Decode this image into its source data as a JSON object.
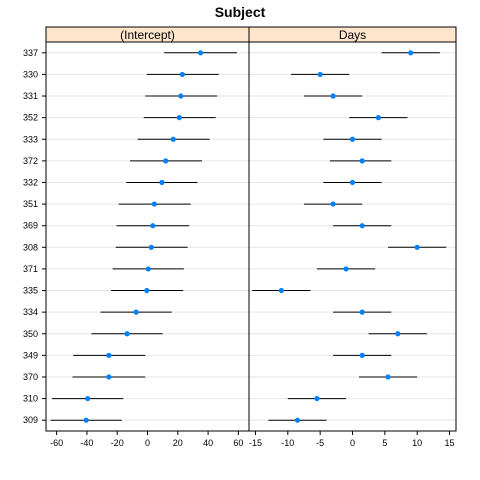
{
  "chart_data": {
    "type": "scatter",
    "title": "Subject",
    "subjects": [
      "337",
      "330",
      "331",
      "352",
      "333",
      "372",
      "332",
      "351",
      "369",
      "308",
      "371",
      "335",
      "334",
      "350",
      "349",
      "370",
      "310",
      "309"
    ],
    "panels": [
      {
        "name": "(Intercept)",
        "xlim": [
          -67,
          67
        ],
        "ticks": [
          -60,
          -40,
          -20,
          0,
          20,
          40,
          60
        ],
        "estimates": [
          35,
          23,
          22,
          21,
          17,
          12,
          9.5,
          4.5,
          3.5,
          2.5,
          0.5,
          -0.5,
          -7.5,
          -13.5,
          -25.5,
          -25.5,
          -39.5,
          -40.5
        ],
        "lower": [
          11,
          -0.5,
          -1.5,
          -2.5,
          -6.5,
          -11.5,
          -14,
          -19,
          -20.5,
          -21,
          -23,
          -24,
          -31,
          -37,
          -49,
          -49.5,
          -63,
          -64
        ],
        "upper": [
          59,
          47,
          46,
          45,
          41,
          36,
          33,
          28.5,
          27.5,
          26.5,
          24,
          23.5,
          16,
          10,
          -1.5,
          -1.5,
          -16,
          -17
        ]
      },
      {
        "name": "Days",
        "xlim": [
          -16,
          16
        ],
        "ticks": [
          -15,
          -10,
          -5,
          0,
          5,
          10,
          15
        ],
        "estimates": [
          9,
          -5,
          -3,
          4,
          0,
          1.5,
          0,
          -3,
          1.5,
          10,
          -1,
          -11,
          1.5,
          7,
          1.5,
          5.5,
          -5.5,
          -8.5
        ],
        "lower": [
          4.5,
          -9.5,
          -7.5,
          -0.5,
          -4.5,
          -3.5,
          -4.5,
          -7.5,
          -3,
          5.5,
          -5.5,
          -15.5,
          -3,
          2.5,
          -3,
          1,
          -10,
          -13
        ],
        "upper": [
          13.5,
          -0.5,
          1.5,
          8.5,
          4.5,
          6,
          4.5,
          1.5,
          6,
          14.5,
          3.5,
          -6.5,
          6,
          11.5,
          6,
          10,
          -1,
          -4
        ]
      }
    ],
    "grid": true,
    "colors": {
      "point": "#0080ff",
      "interval": "#000000",
      "strip": "#ffe5cc",
      "grid": "#e6e6e6",
      "frame": "#000000"
    }
  }
}
